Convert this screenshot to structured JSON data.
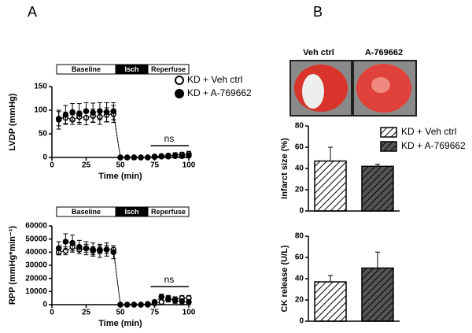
{
  "panels": [
    "A",
    "B"
  ],
  "image_labels": [
    "Veh ctrl",
    "A-769662"
  ],
  "chart_data": [
    {
      "type": "line",
      "ylabel": "LVDP (mmHg)",
      "xlabel": "Time (min)",
      "protocol": [
        "Baseline",
        "Isch",
        "Reperfuse"
      ],
      "annotation": "ns",
      "x": [
        5,
        10,
        15,
        20,
        25,
        30,
        35,
        40,
        45,
        50,
        55,
        60,
        65,
        70,
        75,
        80,
        85,
        90,
        95,
        100
      ],
      "series": [
        {
          "name": "KD + Veh ctrl",
          "color": "#000000",
          "marker": "open",
          "values": [
            82,
            84,
            80,
            86,
            84,
            88,
            86,
            90,
            92,
            0,
            0,
            0,
            0,
            0,
            2,
            3,
            4,
            5,
            6,
            7
          ],
          "errors": [
            15,
            12,
            10,
            12,
            15,
            14,
            16,
            15,
            18,
            1,
            1,
            1,
            1,
            1,
            2,
            3,
            4,
            5,
            5,
            6
          ]
        },
        {
          "name": "KD + A-769662",
          "color": "#000000",
          "marker": "filled",
          "values": [
            80,
            90,
            96,
            92,
            98,
            95,
            98,
            96,
            98,
            0,
            0,
            0,
            0,
            0,
            1,
            2,
            2,
            3,
            3,
            4
          ],
          "errors": [
            20,
            20,
            18,
            22,
            18,
            20,
            18,
            20,
            18,
            1,
            1,
            1,
            1,
            1,
            1,
            2,
            2,
            3,
            3,
            4
          ]
        }
      ],
      "xlim": [
        0,
        100
      ],
      "xticks": [
        0,
        25,
        50,
        75,
        100
      ],
      "ylim": [
        0,
        150
      ],
      "yticks": [
        0,
        50,
        100,
        150
      ]
    },
    {
      "type": "line",
      "ylabel": "RPP (mmHg*min⁻¹)",
      "xlabel": "Time (min)",
      "protocol": [
        "Baseline",
        "Isch",
        "Reperfuse"
      ],
      "annotation": "ns",
      "x": [
        5,
        10,
        15,
        20,
        25,
        30,
        35,
        40,
        45,
        50,
        55,
        60,
        65,
        70,
        75,
        80,
        85,
        90,
        95,
        100
      ],
      "series": [
        {
          "color": "#000000",
          "marker": "open",
          "values": [
            40000,
            41000,
            44000,
            42000,
            43000,
            41000,
            42000,
            42000,
            42000,
            0,
            0,
            0,
            0,
            0,
            1000,
            2000,
            4000,
            4000,
            5000,
            5000
          ],
          "errors": [
            2000,
            3000,
            4000,
            3000,
            3000,
            3000,
            3000,
            3000,
            3000,
            200,
            200,
            200,
            200,
            200,
            800,
            1500,
            2000,
            2000,
            2000,
            2000
          ]
        },
        {
          "color": "#000000",
          "marker": "filled",
          "values": [
            43000,
            48000,
            47000,
            44000,
            43000,
            42000,
            41000,
            42000,
            40000,
            0,
            0,
            0,
            0,
            500,
            2000,
            6000,
            5000,
            3000,
            2500,
            2000
          ],
          "errors": [
            5000,
            6000,
            6000,
            5000,
            5000,
            5000,
            5000,
            5000,
            5000,
            200,
            200,
            200,
            200,
            300,
            1500,
            2000,
            2000,
            2000,
            2000,
            2000
          ]
        }
      ],
      "xlim": [
        0,
        100
      ],
      "xticks": [
        0,
        25,
        50,
        75,
        100
      ],
      "ylim": [
        0,
        60000
      ],
      "yticks": [
        0,
        10000,
        20000,
        30000,
        40000,
        50000,
        60000
      ]
    },
    {
      "type": "bar",
      "ylabel": "Infarct size (%)",
      "series": [
        {
          "name": "KD + Veh ctrl",
          "color": "#ffffff",
          "values": [
            47
          ],
          "errors": [
            13
          ]
        },
        {
          "name": "KD + A-769662",
          "color": "#555555",
          "values": [
            42
          ],
          "errors": [
            2
          ]
        }
      ],
      "ylim": [
        0,
        80
      ],
      "yticks": [
        0,
        20,
        40,
        60,
        80
      ]
    },
    {
      "type": "bar",
      "ylabel": "CK release (U/L)",
      "series": [
        {
          "color": "#ffffff",
          "values": [
            37
          ],
          "errors": [
            6
          ]
        },
        {
          "color": "#555555",
          "values": [
            50
          ],
          "errors": [
            15
          ]
        }
      ],
      "ylim": [
        0,
        80
      ],
      "yticks": [
        0,
        20,
        40,
        60,
        80
      ]
    }
  ]
}
